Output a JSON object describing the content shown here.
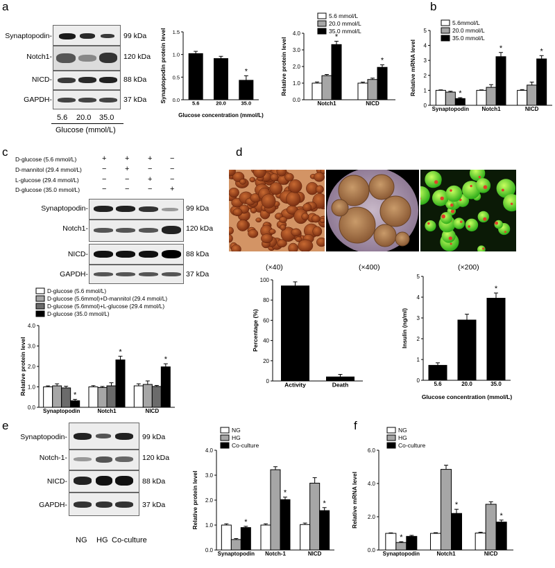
{
  "panel_letters": {
    "a": "a",
    "b": "b",
    "c": "c",
    "d": "d",
    "e": "e",
    "f": "f"
  },
  "kda": {
    "synaptopodin": "99 kDa",
    "notch1": "120 kDa",
    "nicd": "88 kDa",
    "gapdh": "37 kDa"
  },
  "blot_a": {
    "rows": [
      "Synaptopodin-",
      "Notch1-",
      "NICD-",
      "GAPDH-"
    ],
    "lanes": [
      "5.6",
      "20.0",
      "35.0"
    ],
    "xlabel": "Glucose (mmol/L)"
  },
  "blot_c": {
    "rows": [
      "Synaptopodin-",
      "Notch1-",
      "NICD-",
      "GAPDH-"
    ],
    "treatments": [
      {
        "label": "D-glucose (5.6 mmol/L)",
        "marks": [
          "+",
          "+",
          "+",
          "−"
        ]
      },
      {
        "label": "D-mannitol (29.4 mmol/L)",
        "marks": [
          "−",
          "+",
          "−",
          "−"
        ]
      },
      {
        "label": "L-glucose (29.4 mmol/L)",
        "marks": [
          "−",
          "−",
          "+",
          "−"
        ]
      },
      {
        "label": "D-glucose (35.0 mmol/L)",
        "marks": [
          "−",
          "−",
          "−",
          "+"
        ]
      }
    ]
  },
  "blot_e": {
    "rows": [
      "Synaptopodin-",
      "Notch-1-",
      "NICD-",
      "GAPDH-"
    ],
    "lanes": [
      "NG",
      "HG",
      "Co-culture"
    ]
  },
  "photos": {
    "captions": [
      "(×40)",
      "(×400)",
      "(×200)"
    ]
  },
  "colors": {
    "white": "#ffffff",
    "gray": "#a6a6a6",
    "darkgray": "#6b6b6b",
    "black": "#000000"
  },
  "chart_data": [
    {
      "id": "a1",
      "type": "bar",
      "categories": [
        "5.6",
        "20.0",
        "35.0"
      ],
      "values": [
        1.02,
        0.91,
        0.43
      ],
      "errors": [
        0.05,
        0.05,
        0.1
      ],
      "colors": [
        "#000000",
        "#000000",
        "#000000"
      ],
      "ylabel": "Synaptopodin protein level",
      "xlabel": "Glucose concentration (mmol/L)",
      "ylim": [
        0,
        1.5
      ],
      "yticks": [
        "0.0",
        "0.5",
        "1.0",
        "1.5"
      ],
      "star": [
        false,
        false,
        true
      ]
    },
    {
      "id": "a2",
      "type": "bar",
      "categories": [
        "Notch1",
        "NICD"
      ],
      "series": [
        {
          "name": "5.6 mmol/L",
          "values": [
            1.0,
            1.0
          ],
          "errors": [
            0.07,
            0.06
          ]
        },
        {
          "name": "20.0 mmol/L",
          "values": [
            1.45,
            1.22
          ],
          "errors": [
            0.07,
            0.08
          ]
        },
        {
          "name": "35.0 mmol/L",
          "values": [
            3.32,
            1.95
          ],
          "errors": [
            0.2,
            0.15
          ]
        }
      ],
      "colors": [
        "#ffffff",
        "#a6a6a6",
        "#000000"
      ],
      "ylabel": "Relative protein level",
      "ylim": [
        0,
        4.0
      ],
      "yticks": [
        "0.0",
        "1.0",
        "2.0",
        "3.0",
        "4.0"
      ],
      "star": [
        [
          false,
          false,
          true
        ],
        [
          false,
          false,
          true
        ]
      ]
    },
    {
      "id": "b",
      "type": "bar",
      "categories": [
        "Synaptopodin",
        "Notch1",
        "NICD"
      ],
      "series": [
        {
          "name": "5.6mmol/L",
          "values": [
            1.0,
            1.0,
            1.0
          ],
          "errors": [
            0.03,
            0.03,
            0.05
          ]
        },
        {
          "name": "20.0 mmol/L",
          "values": [
            0.88,
            1.2,
            1.35
          ],
          "errors": [
            0.06,
            0.18,
            0.2
          ]
        },
        {
          "name": "35.0 mmol/L",
          "values": [
            0.45,
            3.25,
            3.1
          ],
          "errors": [
            0.06,
            0.28,
            0.22
          ]
        }
      ],
      "colors": [
        "#ffffff",
        "#a6a6a6",
        "#000000"
      ],
      "ylabel": "Relative mRNA level",
      "ylim": [
        0,
        5
      ],
      "yticks": [
        "0",
        "1",
        "2",
        "3",
        "4",
        "5"
      ],
      "star": [
        [
          false,
          false,
          true
        ],
        [
          false,
          false,
          true
        ],
        [
          false,
          false,
          true
        ]
      ]
    },
    {
      "id": "c",
      "type": "bar",
      "categories": [
        "Synaptopodin",
        "Notch1",
        "NICD"
      ],
      "series": [
        {
          "name": "D-glucose (5.6 mmol/L)",
          "values": [
            1.0,
            1.0,
            1.05
          ],
          "errors": [
            0.05,
            0.06,
            0.1
          ]
        },
        {
          "name": "D-glucose (5.6mmol)+D-mannitol (29.4 mmol/L)",
          "values": [
            1.05,
            0.97,
            1.12
          ],
          "errors": [
            0.1,
            0.05,
            0.17
          ]
        },
        {
          "name": "D-glucose (5.6mmol)+L-glucose (29.4 mmol/L)",
          "values": [
            0.95,
            1.05,
            1.02
          ],
          "errors": [
            0.08,
            0.15,
            0.05
          ]
        },
        {
          "name": "D-glucose (35.0 mmol/L)",
          "values": [
            0.32,
            2.32,
            1.98
          ],
          "errors": [
            0.07,
            0.18,
            0.15
          ]
        }
      ],
      "colors": [
        "#ffffff",
        "#a6a6a6",
        "#6b6b6b",
        "#000000"
      ],
      "ylabel": "Relative protein level",
      "ylim": [
        0,
        4.0
      ],
      "yticks": [
        "0.0",
        "1.0",
        "2.0",
        "3.0",
        "4.0"
      ],
      "star": [
        [
          false,
          false,
          false,
          true
        ],
        [
          false,
          false,
          false,
          true
        ],
        [
          false,
          false,
          false,
          true
        ]
      ]
    },
    {
      "id": "d1",
      "type": "bar",
      "categories": [
        "Activity",
        "Death"
      ],
      "values": [
        94,
        4
      ],
      "errors": [
        4,
        2.5
      ],
      "colors": [
        "#000000",
        "#000000"
      ],
      "ylabel": "Percentage (%)",
      "ylim": [
        0,
        100
      ],
      "yticks": [
        "0",
        "20",
        "40",
        "60",
        "80",
        "100"
      ],
      "star": [
        false,
        false
      ]
    },
    {
      "id": "d2",
      "type": "bar",
      "categories": [
        "5.6",
        "20.0",
        "35.0"
      ],
      "values": [
        0.72,
        2.9,
        3.95
      ],
      "errors": [
        0.12,
        0.28,
        0.25
      ],
      "colors": [
        "#000000",
        "#000000",
        "#000000"
      ],
      "ylabel": "Insulin (ng/ml)",
      "xlabel": "Glucose concentration (mmol/L)",
      "ylim": [
        0,
        5
      ],
      "yticks": [
        "0",
        "1",
        "2",
        "3",
        "4",
        "5"
      ],
      "star": [
        false,
        false,
        true
      ]
    },
    {
      "id": "e",
      "type": "bar",
      "categories": [
        "Synaptopodin",
        "Notch-1",
        "NICD"
      ],
      "series": [
        {
          "name": "NG",
          "values": [
            1.0,
            1.0,
            1.02
          ],
          "errors": [
            0.05,
            0.05,
            0.06
          ]
        },
        {
          "name": "HG",
          "values": [
            0.42,
            3.22,
            2.68
          ],
          "errors": [
            0.04,
            0.12,
            0.22
          ]
        },
        {
          "name": "Co-culture",
          "values": [
            0.9,
            2.02,
            1.58
          ],
          "errors": [
            0.05,
            0.1,
            0.12
          ]
        }
      ],
      "colors": [
        "#ffffff",
        "#a6a6a6",
        "#000000"
      ],
      "ylabel": "Relative protein level",
      "ylim": [
        0,
        4.0
      ],
      "yticks": [
        "0.0",
        "1.0",
        "2.0",
        "3.0",
        "4.0"
      ],
      "star": [
        [
          false,
          false,
          true
        ],
        [
          false,
          false,
          true
        ],
        [
          false,
          false,
          true
        ]
      ]
    },
    {
      "id": "f",
      "type": "bar",
      "categories": [
        "Synaptopodin",
        "Notch1",
        "NICD"
      ],
      "series": [
        {
          "name": "NG",
          "values": [
            1.0,
            1.0,
            1.02
          ],
          "errors": [
            0.03,
            0.04,
            0.05
          ]
        },
        {
          "name": "HG",
          "values": [
            0.45,
            4.85,
            2.75
          ],
          "errors": [
            0.05,
            0.25,
            0.15
          ]
        },
        {
          "name": "Co-culture",
          "values": [
            0.82,
            2.2,
            1.68
          ],
          "errors": [
            0.06,
            0.25,
            0.12
          ]
        }
      ],
      "colors": [
        "#ffffff",
        "#a6a6a6",
        "#000000"
      ],
      "ylabel": "Relative mRNA level",
      "ylim": [
        0,
        6.0
      ],
      "yticks": [
        "0.0",
        "2.0",
        "4.0",
        "6.0"
      ],
      "star": [
        [
          false,
          true,
          false
        ],
        [
          false,
          false,
          true
        ],
        [
          false,
          false,
          true
        ]
      ]
    }
  ]
}
